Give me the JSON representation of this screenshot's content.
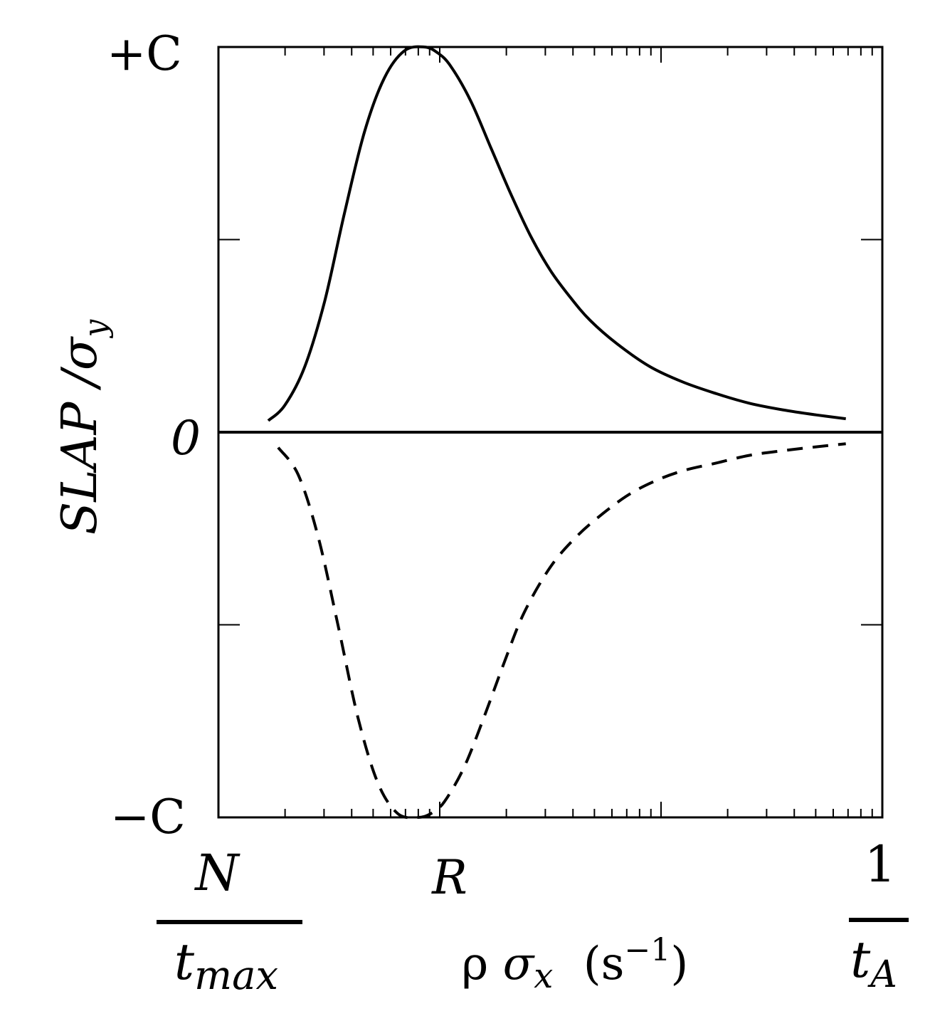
{
  "chart_data": {
    "type": "line",
    "xscale": "log",
    "x_ticks": {
      "left_numerator": "N",
      "left_denominator_main": "t",
      "left_denominator_sub": "max",
      "middle": "R",
      "right_numerator": "1",
      "right_denominator_main": "t",
      "right_denominator_sub": "A"
    },
    "y_ticks": {
      "top": "+C",
      "zero": "0",
      "bottom": "−C"
    },
    "xlabel": {
      "rho": "ρ",
      "sigma": "σ",
      "sigma_sub": "x",
      "unit_open": "(s",
      "unit_exp": "−1",
      "unit_close": ")"
    },
    "ylabel": {
      "main": "SLAP /σ",
      "sub": "y"
    },
    "y_relative_range": [
      -1,
      1
    ],
    "series": [
      {
        "style": "solid",
        "x_rel": [
          0.075,
          0.1,
          0.13,
          0.16,
          0.19,
          0.22,
          0.25,
          0.28,
          0.31,
          0.33,
          0.35,
          0.38,
          0.41,
          0.44,
          0.47,
          0.5,
          0.53,
          0.56,
          0.6,
          0.65,
          0.7,
          0.75,
          0.8,
          0.85,
          0.9,
          0.945
        ],
        "y_rel": [
          0.03,
          0.07,
          0.17,
          0.34,
          0.57,
          0.78,
          0.92,
          0.99,
          1.0,
          0.985,
          0.95,
          0.86,
          0.74,
          0.62,
          0.51,
          0.42,
          0.35,
          0.29,
          0.23,
          0.17,
          0.13,
          0.1,
          0.075,
          0.058,
          0.045,
          0.035
        ]
      },
      {
        "style": "dashed",
        "x_rel": [
          0.09,
          0.12,
          0.15,
          0.18,
          0.21,
          0.24,
          0.27,
          0.3,
          0.32,
          0.34,
          0.37,
          0.4,
          0.43,
          0.46,
          0.5,
          0.54,
          0.58,
          0.62,
          0.66,
          0.7,
          0.75,
          0.8,
          0.85,
          0.9,
          0.945
        ],
        "y_rel": [
          -0.04,
          -0.11,
          -0.27,
          -0.5,
          -0.74,
          -0.91,
          -0.99,
          -1.0,
          -0.99,
          -0.96,
          -0.87,
          -0.74,
          -0.6,
          -0.47,
          -0.35,
          -0.27,
          -0.21,
          -0.16,
          -0.125,
          -0.1,
          -0.08,
          -0.06,
          -0.048,
          -0.038,
          -0.03
        ]
      }
    ],
    "grid": false,
    "legend": "none"
  }
}
